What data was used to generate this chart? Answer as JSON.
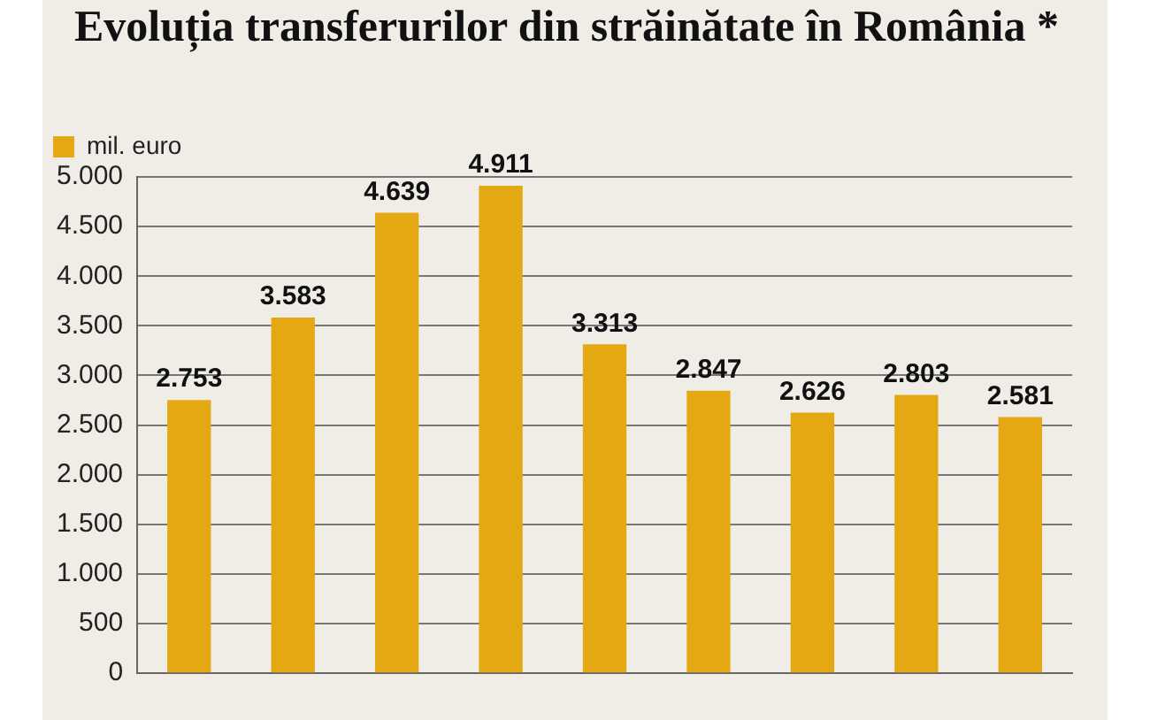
{
  "chart_data": {
    "type": "bar",
    "title": "Evoluția transferurilor din străinătate în România *",
    "categories": [
      null,
      null,
      null,
      null,
      null,
      null,
      null,
      null,
      null
    ],
    "series": [
      {
        "name": "mil. euro",
        "color": "#e3a812",
        "values": [
          2753,
          3583,
          4639,
          4911,
          3313,
          2847,
          2626,
          2803,
          2581
        ],
        "value_labels": [
          "2.753",
          "3.583",
          "4.639",
          "4.911",
          "3.313",
          "2.847",
          "2.626",
          "2.803",
          "2.581"
        ]
      }
    ],
    "ylim": [
      0,
      5000
    ],
    "yticks": [
      0,
      {
        "value": 500,
        "label": "500"
      },
      {
        "value": 1000,
        "label": "1.000"
      },
      {
        "value": 1500,
        "label": "1.500"
      },
      {
        "value": 2000,
        "label": "2.000"
      },
      {
        "value": 2500,
        "label": "2.500"
      },
      {
        "value": 3000,
        "label": "3.000"
      },
      {
        "value": 3500,
        "label": "3.500"
      },
      {
        "value": 4000,
        "label": "4.000"
      },
      {
        "value": 4500,
        "label": "4.500"
      },
      {
        "value": 5000,
        "label": "5.000"
      }
    ],
    "grid": "y",
    "legend": "top left"
  }
}
